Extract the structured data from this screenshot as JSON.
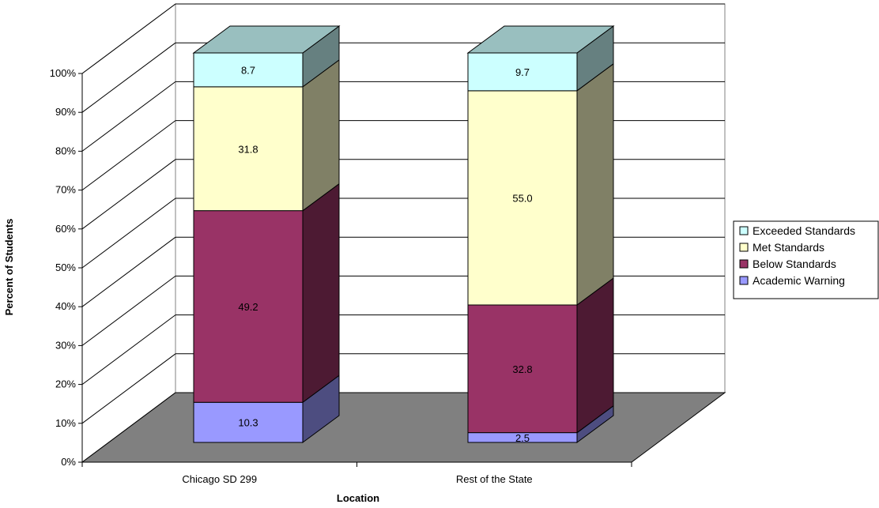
{
  "chart_data": {
    "type": "bar",
    "stacked": true,
    "three_d": true,
    "title": "",
    "xlabel": "Location",
    "ylabel": "Percent of Students",
    "ylim": [
      0,
      100
    ],
    "y_ticks": [
      "0%",
      "10%",
      "20%",
      "30%",
      "40%",
      "50%",
      "60%",
      "70%",
      "80%",
      "90%",
      "100%"
    ],
    "categories": [
      "Chicago SD 299",
      "Rest of the State"
    ],
    "series": [
      {
        "name": "Academic Warning",
        "values": [
          10.3,
          2.5
        ],
        "labels": [
          "10.3",
          "2.5"
        ],
        "color": "#9999ff"
      },
      {
        "name": "Below Standards",
        "values": [
          49.2,
          32.8
        ],
        "labels": [
          "49.2",
          "32.8"
        ],
        "color": "#993366"
      },
      {
        "name": "Met Standards",
        "values": [
          31.8,
          55.0
        ],
        "labels": [
          "31.8",
          "55.0"
        ],
        "color": "#ffffcc"
      },
      {
        "name": "Exceeded Standards",
        "values": [
          8.7,
          9.7
        ],
        "labels": [
          "8.7",
          "9.7"
        ],
        "color": "#ccffff"
      }
    ],
    "legend": {
      "placement": "right",
      "order": [
        "Exceeded Standards",
        "Met Standards",
        "Below Standards",
        "Academic Warning"
      ]
    },
    "grid": true,
    "floor_color": "#808080"
  }
}
